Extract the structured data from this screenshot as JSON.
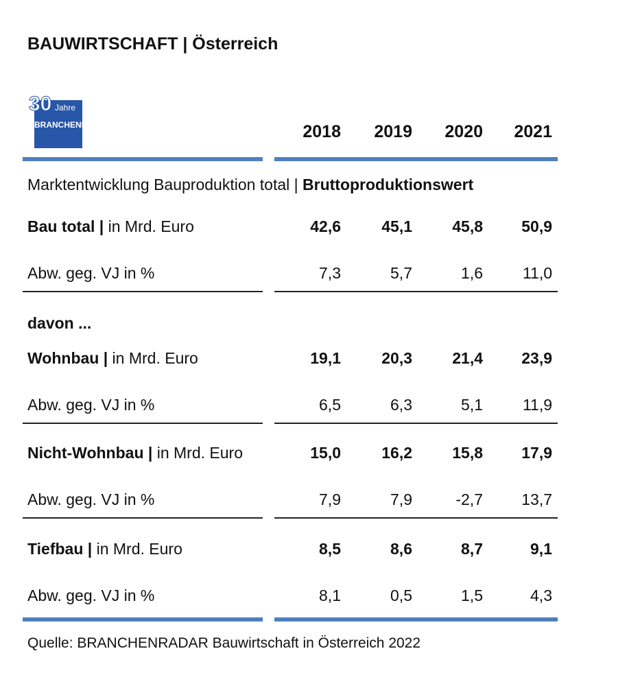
{
  "header": {
    "title": "BAUWIRTSCHAFT | Österreich"
  },
  "logo": {
    "number": "30",
    "word": "Jahre",
    "brand": "BRANCHENRADAR"
  },
  "table": {
    "columns": [
      "2018",
      "2019",
      "2020",
      "2021"
    ],
    "subtitle": {
      "text": "Marktentwicklung Bauproduktion total |",
      "bold": "Bruttoproduktionswert"
    },
    "groups": [
      {
        "label": "Bau total |",
        "unit": "in Mrd. Euro",
        "values": [
          "42,6",
          "45,1",
          "45,8",
          "50,9"
        ],
        "change_label": "Abw. geg. VJ in %",
        "changes": [
          "7,3",
          "5,7",
          "1,6",
          "11,0"
        ]
      },
      {
        "label": "Wohnbau |",
        "unit": "in Mrd. Euro",
        "values": [
          "19,1",
          "20,3",
          "21,4",
          "23,9"
        ],
        "change_label": "Abw. geg. VJ in %",
        "changes": [
          "6,5",
          "6,3",
          "5,1",
          "11,9"
        ]
      },
      {
        "label": "Nicht-Wohnbau |",
        "unit": "in Mrd. Euro",
        "values": [
          "15,0",
          "16,2",
          "15,8",
          "17,9"
        ],
        "change_label": "Abw. geg. VJ in %",
        "changes": [
          "7,9",
          "7,9",
          "-2,7",
          "13,7"
        ]
      },
      {
        "label": "Tiefbau |",
        "unit": "in Mrd. Euro",
        "values": [
          "8,5",
          "8,6",
          "8,7",
          "9,1"
        ],
        "change_label": "Abw. geg. VJ in %",
        "changes": [
          "8,1",
          "0,5",
          "1,5",
          "4,3"
        ]
      }
    ],
    "davon": "davon ..."
  },
  "footer": {
    "source": "Quelle: BRANCHENRADAR Bauwirtschaft in Österreich 2022"
  }
}
